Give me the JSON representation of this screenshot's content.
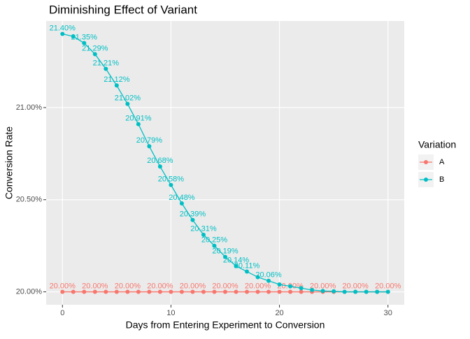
{
  "chart_data": {
    "type": "line",
    "title": "Diminishing Effect of Variant",
    "x_label": "Days from Entering Experiment to Conversion",
    "y_label": "Conversion Rate",
    "legend_title": "Variation",
    "legend_position": "right",
    "grid": true,
    "x": [
      0,
      1,
      2,
      3,
      4,
      5,
      6,
      7,
      8,
      9,
      10,
      11,
      12,
      13,
      14,
      15,
      16,
      17,
      18,
      19,
      20,
      21,
      22,
      23,
      24,
      25,
      26,
      27,
      28,
      29,
      30
    ],
    "xlim": [
      -1.5,
      31.5
    ],
    "xticks": [
      0,
      10,
      20,
      30
    ],
    "ylim": [
      19.93,
      21.47
    ],
    "yticks": [
      {
        "value": 20,
        "label": "20.00%"
      },
      {
        "value": 20.5,
        "label": "20.50%"
      },
      {
        "value": 21,
        "label": "21.00%"
      }
    ],
    "series": [
      {
        "name": "A",
        "color": "#f8766d",
        "values": [
          20,
          20,
          20,
          20,
          20,
          20,
          20,
          20,
          20,
          20,
          20,
          20,
          20,
          20,
          20,
          20,
          20,
          20,
          20,
          20,
          20,
          20,
          20,
          20,
          20,
          20,
          20,
          20,
          20,
          20,
          20
        ],
        "value_labels": [
          "20.00%",
          null,
          null,
          "20.00%",
          null,
          null,
          "20.00%",
          null,
          null,
          "20.00%",
          null,
          null,
          "20.00%",
          null,
          null,
          "20.00%",
          null,
          null,
          "20.00%",
          null,
          null,
          "20.00%",
          null,
          null,
          "20.00%",
          null,
          null,
          "20.00%",
          null,
          null,
          "20.00%"
        ]
      },
      {
        "name": "B",
        "color": "#00bfc4",
        "values": [
          21.4,
          21.386,
          21.35,
          21.29,
          21.21,
          21.12,
          21.02,
          20.91,
          20.79,
          20.68,
          20.58,
          20.48,
          20.39,
          20.31,
          20.25,
          20.19,
          20.14,
          20.11,
          20.08,
          20.06,
          20.04,
          20.03,
          20.02,
          20.01,
          20.005,
          20.003,
          20,
          20,
          20,
          20,
          20
        ],
        "value_labels": [
          "21.40%",
          null,
          "21.35%",
          "21.29%",
          "21.21%",
          "21.12%",
          "21.02%",
          "20.91%",
          "20.79%",
          "20.68%",
          "20.58%",
          "20.48%",
          "20.39%",
          "20.31%",
          "20.25%",
          "20.19%",
          "20.14%",
          "20.11%",
          null,
          "20.06%",
          null,
          null,
          null,
          null,
          null,
          null,
          null,
          null,
          null,
          null,
          null
        ]
      }
    ]
  }
}
